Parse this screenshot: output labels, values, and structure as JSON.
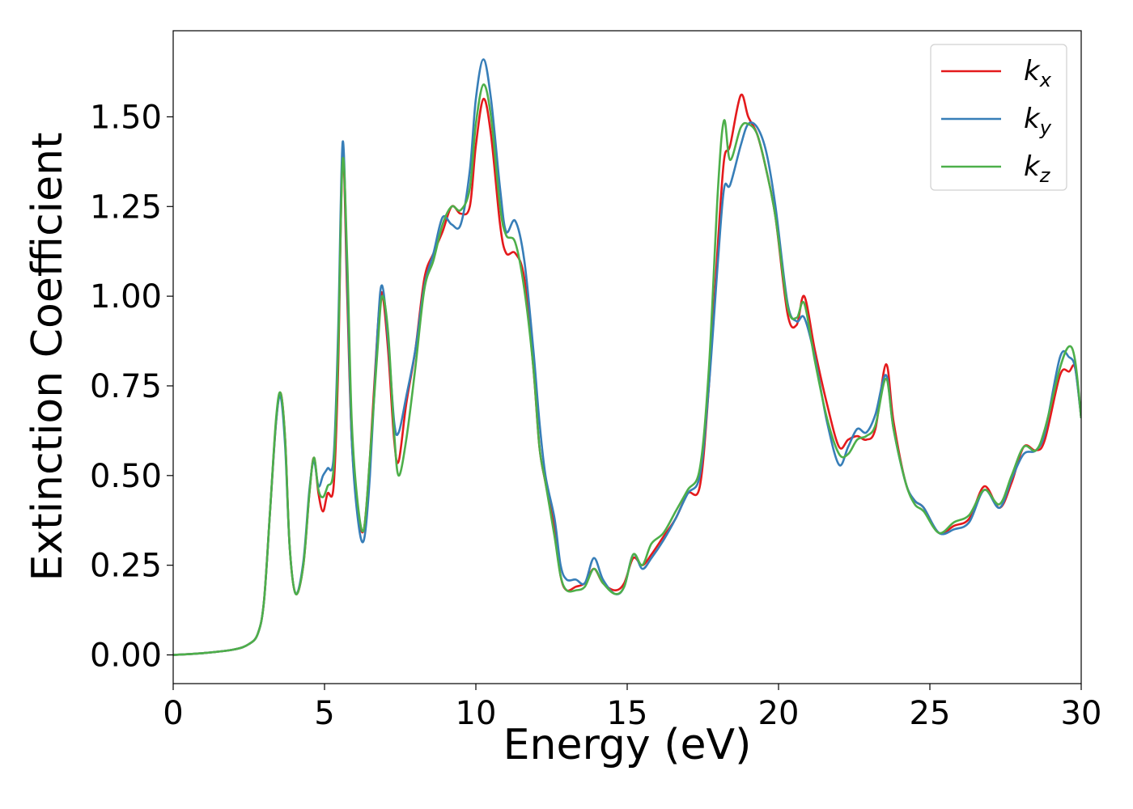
{
  "chart_data": {
    "type": "line",
    "xlabel": "Energy (eV)",
    "ylabel": "Extinction Coefficient",
    "x": [
      0,
      1,
      2,
      2.5,
      2.8,
      3.0,
      3.2,
      3.4,
      3.55,
      3.7,
      3.85,
      4.05,
      4.3,
      4.5,
      4.65,
      4.8,
      4.95,
      5.1,
      5.3,
      5.45,
      5.6,
      5.75,
      5.9,
      6.1,
      6.3,
      6.5,
      6.75,
      6.9,
      7.1,
      7.3,
      7.45,
      7.7,
      8.0,
      8.3,
      8.6,
      8.9,
      9.2,
      9.5,
      9.8,
      10.0,
      10.25,
      10.5,
      10.8,
      11.0,
      11.3,
      11.6,
      11.9,
      12.1,
      12.3,
      12.6,
      12.8,
      13.0,
      13.3,
      13.6,
      13.9,
      14.2,
      14.6,
      14.9,
      15.2,
      15.5,
      15.8,
      16.2,
      16.6,
      17.0,
      17.4,
      17.7,
      18.0,
      18.2,
      18.4,
      18.75,
      19.0,
      19.3,
      19.6,
      19.9,
      20.3,
      20.6,
      20.85,
      21.2,
      21.6,
      22.0,
      22.3,
      22.6,
      22.9,
      23.2,
      23.55,
      23.8,
      24.2,
      24.5,
      24.8,
      25.3,
      25.8,
      26.3,
      26.8,
      27.3,
      27.7,
      28.1,
      28.5,
      28.8,
      29.3,
      29.6,
      29.8,
      30
    ],
    "series": [
      {
        "name": "kx",
        "color": "#e41a1c",
        "values": [
          0,
          0.005,
          0.015,
          0.03,
          0.06,
          0.15,
          0.4,
          0.65,
          0.73,
          0.6,
          0.3,
          0.17,
          0.25,
          0.45,
          0.55,
          0.45,
          0.4,
          0.45,
          0.47,
          0.8,
          1.4,
          1.0,
          0.6,
          0.4,
          0.35,
          0.55,
          0.9,
          1.01,
          0.85,
          0.6,
          0.54,
          0.7,
          0.85,
          1.05,
          1.12,
          1.18,
          1.25,
          1.23,
          1.25,
          1.42,
          1.55,
          1.45,
          1.2,
          1.12,
          1.12,
          1.05,
          0.8,
          0.58,
          0.48,
          0.35,
          0.22,
          0.18,
          0.19,
          0.2,
          0.24,
          0.2,
          0.18,
          0.2,
          0.27,
          0.25,
          0.28,
          0.33,
          0.38,
          0.45,
          0.47,
          0.75,
          1.15,
          1.38,
          1.42,
          1.56,
          1.5,
          1.45,
          1.35,
          1.22,
          0.95,
          0.92,
          1.0,
          0.85,
          0.7,
          0.58,
          0.6,
          0.61,
          0.6,
          0.63,
          0.81,
          0.65,
          0.48,
          0.43,
          0.41,
          0.34,
          0.36,
          0.38,
          0.47,
          0.41,
          0.48,
          0.58,
          0.57,
          0.6,
          0.78,
          0.79,
          0.8,
          0.66
        ]
      },
      {
        "name": "ky",
        "color": "#377eb8",
        "values": [
          0,
          0.005,
          0.015,
          0.03,
          0.06,
          0.15,
          0.4,
          0.65,
          0.72,
          0.58,
          0.3,
          0.17,
          0.26,
          0.46,
          0.54,
          0.47,
          0.5,
          0.52,
          0.55,
          0.9,
          1.43,
          1.05,
          0.6,
          0.38,
          0.32,
          0.5,
          0.9,
          1.03,
          0.88,
          0.65,
          0.62,
          0.72,
          0.85,
          1.03,
          1.12,
          1.22,
          1.2,
          1.2,
          1.35,
          1.55,
          1.66,
          1.55,
          1.3,
          1.18,
          1.21,
          1.1,
          0.85,
          0.65,
          0.5,
          0.38,
          0.25,
          0.21,
          0.21,
          0.2,
          0.27,
          0.21,
          0.17,
          0.19,
          0.28,
          0.24,
          0.27,
          0.32,
          0.38,
          0.45,
          0.5,
          0.75,
          1.1,
          1.3,
          1.31,
          1.42,
          1.48,
          1.47,
          1.4,
          1.25,
          0.98,
          0.93,
          0.94,
          0.83,
          0.65,
          0.53,
          0.58,
          0.63,
          0.62,
          0.67,
          0.78,
          0.63,
          0.48,
          0.43,
          0.41,
          0.34,
          0.35,
          0.37,
          0.46,
          0.41,
          0.49,
          0.56,
          0.57,
          0.62,
          0.83,
          0.83,
          0.8,
          0.66
        ]
      },
      {
        "name": "kz",
        "color": "#4daf4a",
        "values": [
          0,
          0.005,
          0.015,
          0.03,
          0.06,
          0.15,
          0.4,
          0.66,
          0.73,
          0.6,
          0.3,
          0.17,
          0.25,
          0.45,
          0.55,
          0.46,
          0.44,
          0.47,
          0.52,
          0.85,
          1.38,
          1.1,
          0.65,
          0.42,
          0.35,
          0.55,
          0.85,
          1.0,
          0.9,
          0.62,
          0.5,
          0.6,
          0.8,
          1.02,
          1.1,
          1.2,
          1.25,
          1.24,
          1.3,
          1.48,
          1.59,
          1.5,
          1.25,
          1.17,
          1.15,
          1.02,
          0.8,
          0.58,
          0.48,
          0.33,
          0.22,
          0.18,
          0.18,
          0.19,
          0.24,
          0.2,
          0.17,
          0.19,
          0.28,
          0.25,
          0.31,
          0.34,
          0.4,
          0.46,
          0.52,
          0.8,
          1.3,
          1.49,
          1.38,
          1.47,
          1.48,
          1.45,
          1.35,
          1.22,
          0.97,
          0.94,
          0.98,
          0.82,
          0.66,
          0.56,
          0.56,
          0.6,
          0.61,
          0.64,
          0.77,
          0.63,
          0.48,
          0.42,
          0.4,
          0.34,
          0.37,
          0.39,
          0.46,
          0.42,
          0.5,
          0.58,
          0.57,
          0.63,
          0.8,
          0.86,
          0.82,
          0.66
        ]
      }
    ],
    "xlim": [
      0,
      30
    ],
    "xticks": [
      0,
      5,
      10,
      15,
      20,
      25,
      30
    ],
    "ylim": [
      -0.08,
      1.74
    ],
    "yticks": [
      {
        "value": 0,
        "label": "0.00"
      },
      {
        "value": 0.25,
        "label": "0.25"
      },
      {
        "value": 0.5,
        "label": "0.50"
      },
      {
        "value": 0.75,
        "label": "0.75"
      },
      {
        "value": 1.0,
        "label": "1.00"
      },
      {
        "value": 1.25,
        "label": "1.25"
      },
      {
        "value": 1.5,
        "label": "1.50"
      }
    ],
    "grid": false,
    "legend": "upper right"
  }
}
